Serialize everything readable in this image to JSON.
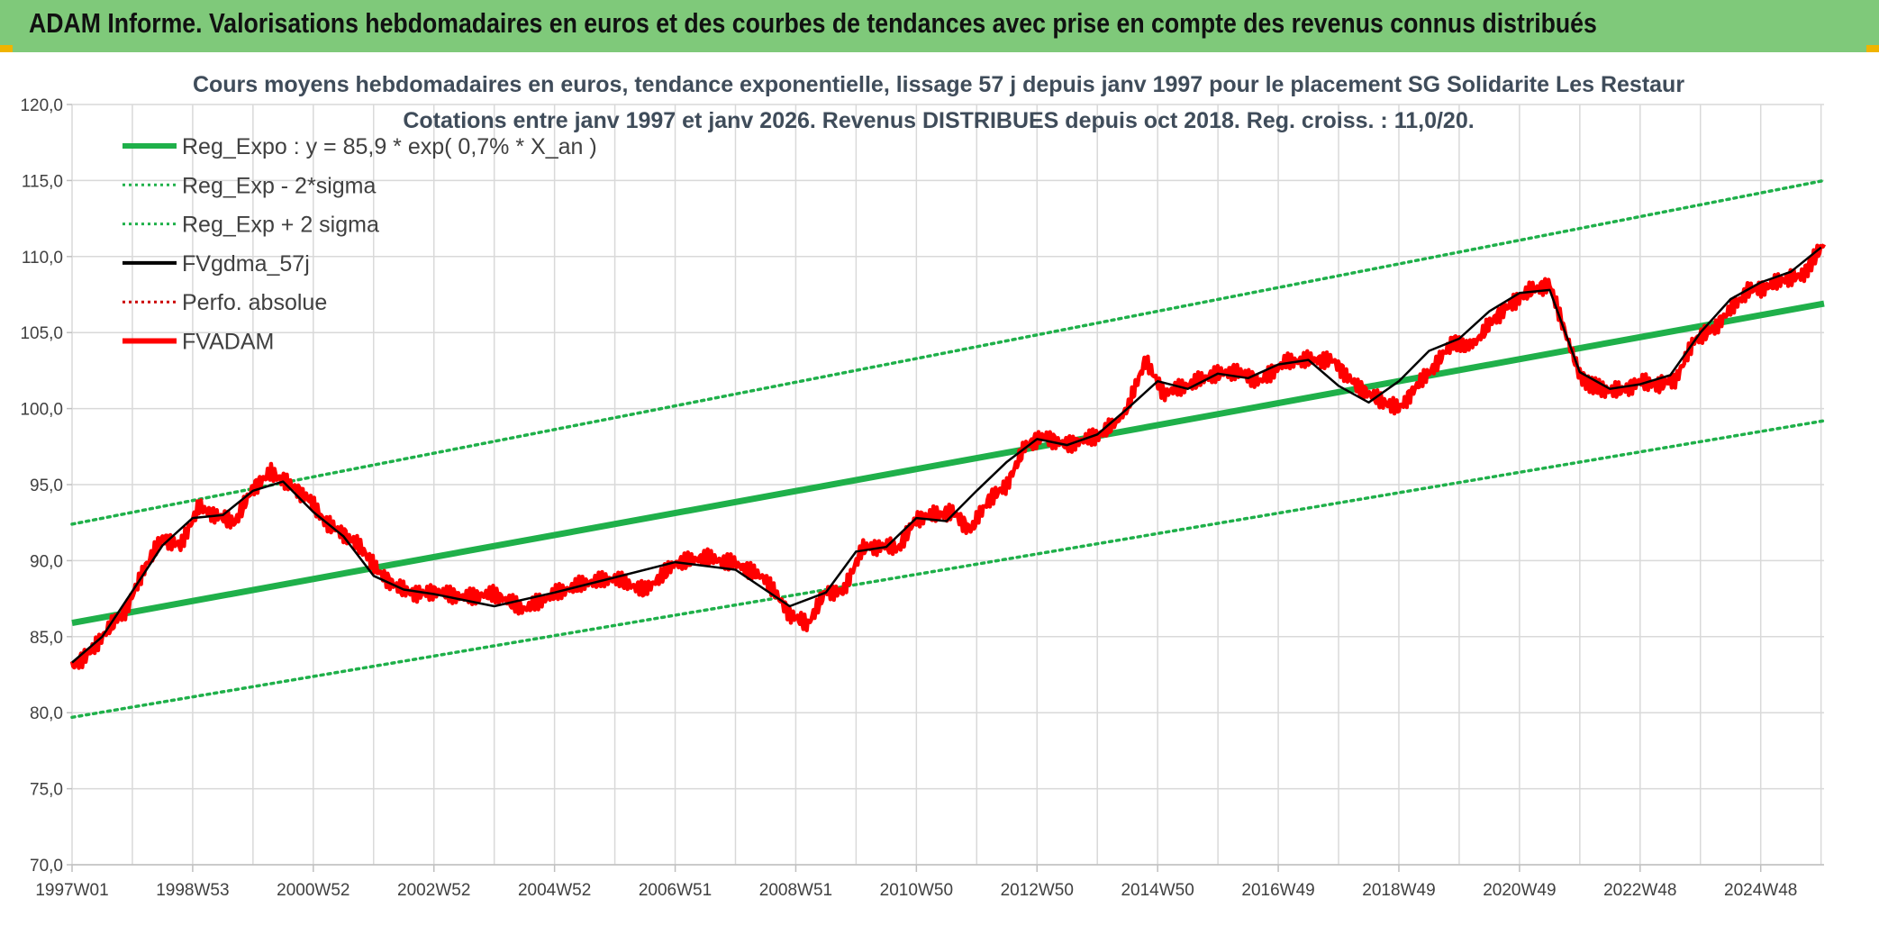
{
  "banner": {
    "title": "ADAM Informe. Valorisations hebdomadaires en euros et des courbes de tendances avec prise en compte des revenus connus distribués"
  },
  "colors": {
    "banner_bg": "#7fc97a",
    "trend": "#1fb04a",
    "band": "#1fb04a",
    "smooth": "#000000",
    "fvadam": "#ff0000",
    "perfo": "#cc0000",
    "grid": "#d9d9d9"
  },
  "chart_data": {
    "type": "line",
    "title_lines": [
      "Cours moyens hebdomadaires en euros, tendance exponentielle, lissage 57 j depuis janv 1997 pour le placement SG Solidarite Les Restaur",
      "Cotations entre janv 1997 et janv 2026. Revenus DISTRIBUES depuis oct 2018. Reg. croiss. : 11,0/20."
    ],
    "ylim": [
      70,
      120
    ],
    "xlim": [
      1997.0,
      2026.05
    ],
    "y_ticks": [
      "70,0",
      "75,0",
      "80,0",
      "85,0",
      "90,0",
      "95,0",
      "100,0",
      "105,0",
      "110,0",
      "115,0",
      "120,0"
    ],
    "x_ticks": [
      "1997W01",
      "1998W53",
      "2000W52",
      "2002W52",
      "2004W52",
      "2006W51",
      "2008W51",
      "2010W50",
      "2012W50",
      "2014W50",
      "2016W49",
      "2018W49",
      "2020W49",
      "2022W48",
      "2024W48"
    ],
    "legend": [
      {
        "label": "Reg_Expo : y = 85,9 * exp( 0,7% *  X_an )",
        "style": "solid-thick",
        "color": "#1fb04a"
      },
      {
        "label": "Reg_Exp - 2*sigma",
        "style": "dotted",
        "color": "#1fb04a"
      },
      {
        "label": "Reg_Exp + 2 sigma",
        "style": "dotted",
        "color": "#1fb04a"
      },
      {
        "label": "FVgdma_57j",
        "style": "solid",
        "color": "#000000"
      },
      {
        "label": "Perfo. absolue",
        "style": "dotted",
        "color": "#cc0000"
      },
      {
        "label": "FVADAM",
        "style": "solid-thick",
        "color": "#ff0000"
      }
    ],
    "series": [
      {
        "name": "Reg_Expo : y = 85,9 * exp( 0,7% *  X_an )",
        "x": [
          1997.0,
          2026.05
        ],
        "y": [
          85.9,
          106.9
        ]
      },
      {
        "name": "Reg_Exp - 2*sigma",
        "x": [
          1997.0,
          2026.05
        ],
        "y": [
          79.7,
          99.2
        ]
      },
      {
        "name": "Reg_Exp + 2 sigma",
        "x": [
          1997.0,
          2026.05
        ],
        "y": [
          92.4,
          115.0
        ]
      },
      {
        "name": "FVADAM",
        "x": [
          1997.0,
          1997.3,
          1997.6,
          1997.9,
          1998.2,
          1998.5,
          1998.8,
          1999.1,
          1999.4,
          1999.7,
          2000.0,
          2000.3,
          2000.6,
          2000.9,
          2001.2,
          2001.5,
          2001.8,
          2002.1,
          2002.4,
          2002.7,
          2003.0,
          2003.5,
          2004.0,
          2004.5,
          2005.0,
          2005.5,
          2006.0,
          2006.5,
          2007.0,
          2007.5,
          2008.0,
          2008.5,
          2008.9,
          2009.2,
          2009.5,
          2009.8,
          2010.1,
          2010.4,
          2010.7,
          2011.0,
          2011.3,
          2011.6,
          2011.9,
          2012.2,
          2012.5,
          2012.8,
          2013.1,
          2013.5,
          2014.0,
          2014.3,
          2014.5,
          2014.8,
          2015.1,
          2015.5,
          2015.9,
          2016.3,
          2016.7,
          2017.1,
          2017.5,
          2017.9,
          2018.3,
          2018.7,
          2019.0,
          2019.3,
          2019.6,
          2019.9,
          2020.1,
          2020.3,
          2020.6,
          2020.9,
          2021.2,
          2021.5,
          2021.8,
          2022.0,
          2022.2,
          2022.4,
          2022.7,
          2023.0,
          2023.3,
          2023.6,
          2023.9,
          2024.2,
          2024.5,
          2024.8,
          2025.1,
          2025.4,
          2025.7,
          2025.9,
          2026.05
        ],
        "y": [
          83.0,
          84.0,
          85.5,
          86.8,
          89.5,
          91.5,
          91.0,
          93.5,
          93.0,
          92.5,
          94.8,
          95.8,
          95.0,
          94.2,
          92.5,
          91.8,
          90.8,
          89.2,
          88.2,
          87.8,
          88.0,
          87.6,
          87.8,
          86.8,
          87.8,
          88.5,
          88.8,
          88.0,
          89.8,
          90.2,
          89.8,
          88.8,
          86.5,
          85.8,
          88.0,
          88.0,
          90.8,
          91.0,
          90.8,
          92.8,
          93.0,
          93.2,
          92.0,
          94.0,
          95.0,
          97.5,
          98.2,
          97.6,
          98.2,
          99.0,
          100.0,
          103.2,
          101.0,
          101.5,
          102.2,
          102.5,
          101.8,
          103.0,
          103.2,
          103.2,
          101.5,
          100.5,
          100.0,
          101.5,
          102.8,
          104.5,
          104.0,
          104.5,
          106.0,
          107.0,
          107.8,
          108.2,
          104.5,
          102.2,
          101.5,
          101.2,
          101.2,
          101.8,
          101.5,
          102.0,
          104.5,
          105.2,
          106.5,
          107.8,
          108.0,
          108.5,
          108.8,
          110.0,
          110.8
        ]
      },
      {
        "name": "FVgdma_57j",
        "x": [
          1997.0,
          1997.5,
          1998.0,
          1998.5,
          1999.0,
          1999.5,
          2000.0,
          2000.5,
          2001.0,
          2001.5,
          2002.0,
          2002.5,
          2003.0,
          2004.0,
          2005.0,
          2006.0,
          2007.0,
          2008.0,
          2008.9,
          2009.5,
          2010.0,
          2010.5,
          2011.0,
          2011.5,
          2012.0,
          2012.5,
          2013.0,
          2013.5,
          2014.0,
          2014.5,
          2015.0,
          2015.5,
          2016.0,
          2016.5,
          2017.0,
          2017.5,
          2018.0,
          2018.5,
          2019.0,
          2019.5,
          2020.0,
          2020.5,
          2021.0,
          2021.5,
          2022.0,
          2022.5,
          2023.0,
          2023.5,
          2024.0,
          2024.5,
          2025.0,
          2025.5,
          2026.0
        ],
        "y": [
          83.3,
          85.0,
          88.0,
          91.0,
          92.8,
          93.0,
          94.6,
          95.2,
          93.2,
          91.6,
          89.0,
          88.1,
          87.8,
          87.0,
          87.9,
          88.9,
          89.9,
          89.4,
          87.0,
          87.9,
          90.6,
          90.9,
          92.8,
          92.6,
          94.6,
          96.5,
          98.0,
          97.6,
          98.3,
          100.0,
          101.8,
          101.3,
          102.3,
          102.0,
          102.9,
          103.2,
          101.5,
          100.4,
          101.8,
          103.8,
          104.6,
          106.4,
          107.6,
          107.8,
          102.4,
          101.3,
          101.6,
          102.2,
          105.0,
          107.2,
          108.3,
          109.0,
          110.6
        ]
      }
    ]
  }
}
